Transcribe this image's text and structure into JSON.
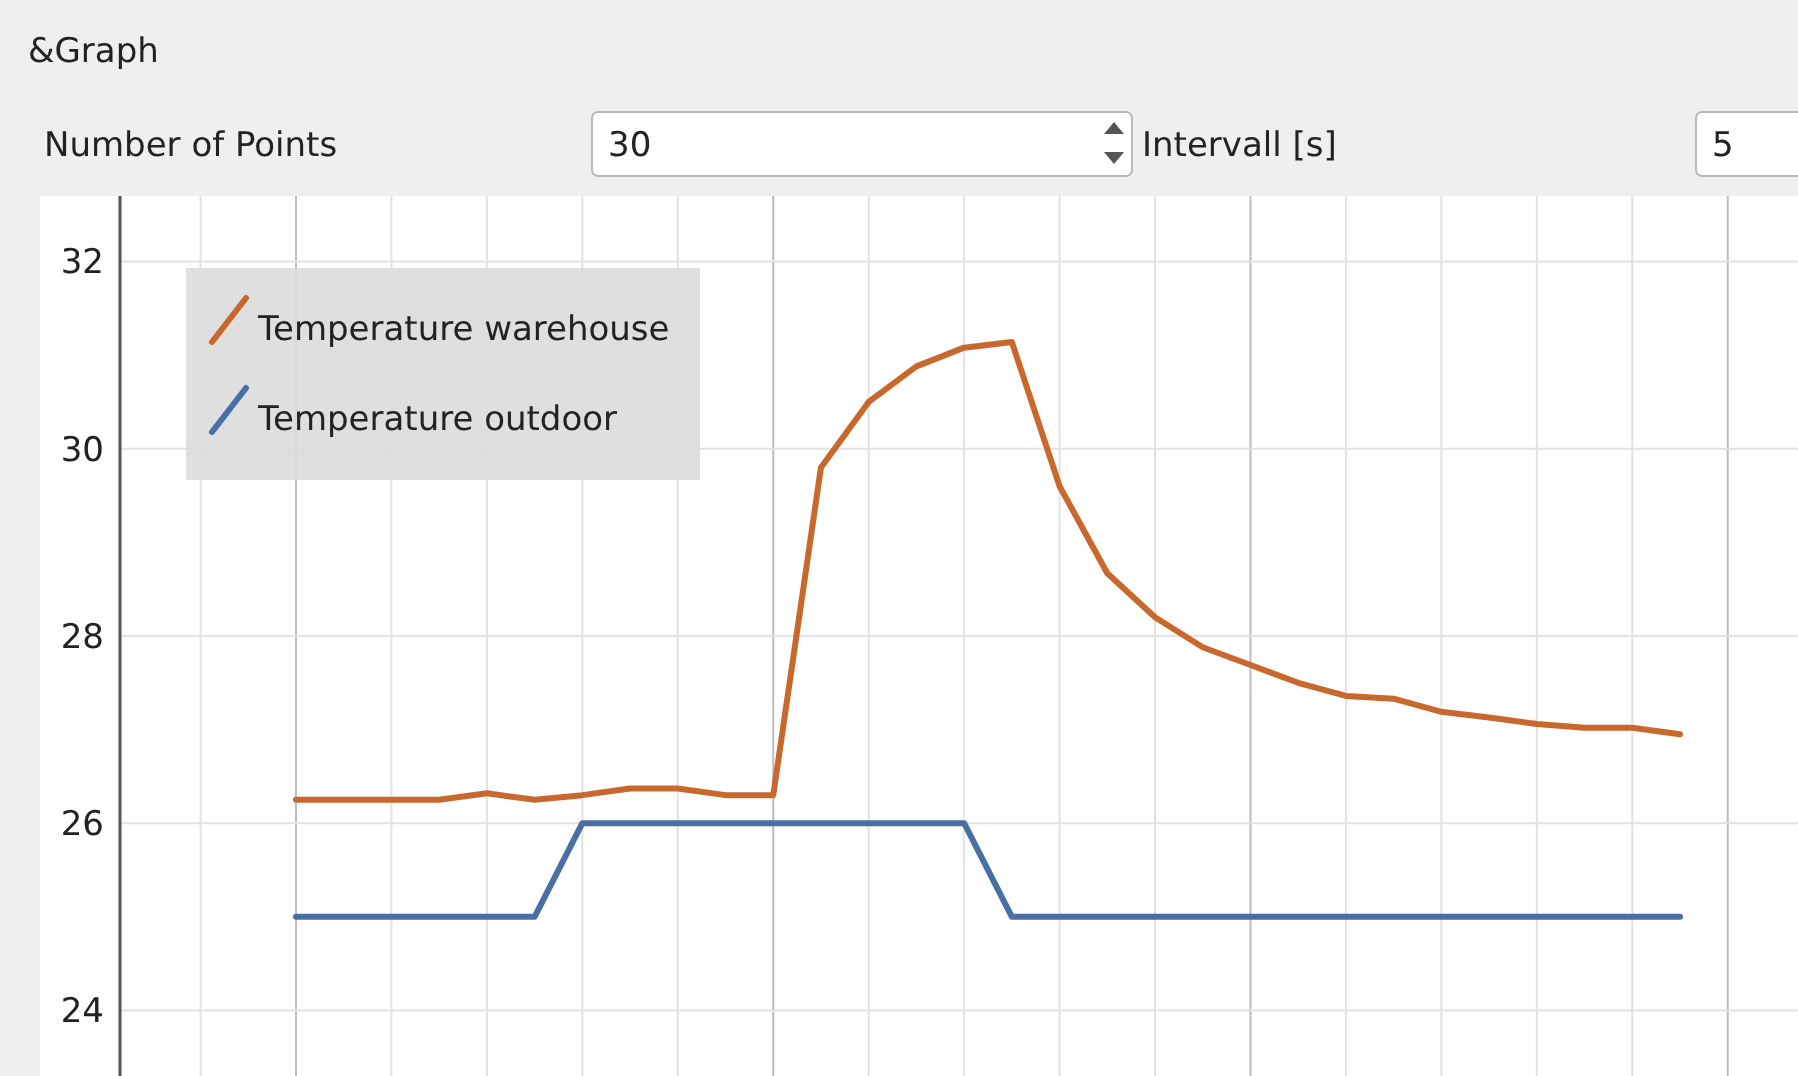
{
  "chart_data": {
    "type": "line",
    "title": "&Graph",
    "annotations": [
      "Number of Points",
      "30",
      "Intervall [s]",
      "5"
    ],
    "categories": [
      null,
      null,
      null,
      null,
      null,
      null,
      null,
      null,
      null,
      null,
      null,
      null,
      null,
      null,
      null,
      null,
      null,
      null,
      null,
      null,
      null,
      null,
      null,
      null,
      null,
      null,
      null,
      null,
      null,
      null
    ],
    "series": [
      {
        "name": "Temperature warehouse",
        "color": "#c8682c",
        "values": [
          26.25,
          26.25,
          26.25,
          26.25,
          26.32,
          26.25,
          26.3,
          26.37,
          26.37,
          26.3,
          26.3,
          29.8,
          30.5,
          30.88,
          31.08,
          31.14,
          29.6,
          28.67,
          28.2,
          27.88,
          27.69,
          27.5,
          27.36,
          27.33,
          27.19,
          27.13,
          27.06,
          27.02,
          27.02,
          26.95
        ]
      },
      {
        "name": "Temperature outdoor",
        "color": "#4a6fa5",
        "values": [
          25,
          25,
          25,
          25,
          25,
          25,
          26,
          26,
          26,
          26,
          26,
          26,
          26,
          26,
          26,
          25,
          25,
          25,
          25,
          25,
          25,
          25,
          25,
          25,
          25,
          25,
          25,
          25,
          25,
          25
        ]
      }
    ],
    "ylim": [
      23.3,
      32.7
    ],
    "yticks": [
      24,
      26,
      28,
      30,
      32
    ],
    "grid": true,
    "legend": "top left",
    "tick_labels": "y",
    "line_style": "solid",
    "marker": "none"
  }
}
